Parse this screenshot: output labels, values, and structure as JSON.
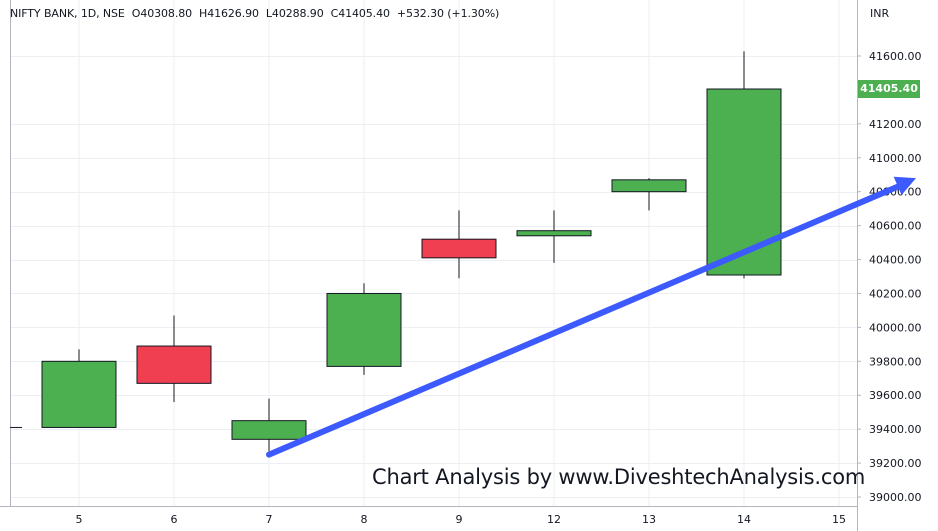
{
  "header": {
    "symbol": "NIFTY BANK, 1D, NSE",
    "open": "O40308.80",
    "high": "H41626.90",
    "low": "L40288.90",
    "close": "C41405.40",
    "change": "+532.30 (+1.30%)",
    "currency": "INR"
  },
  "last_price_label": "41405.40",
  "watermark": "Chart Analysis by www.DiveshtechAnalysis.com",
  "colors": {
    "up": "#4caf50",
    "down": "#ef3f50",
    "trend_arrow": "#3d5afe",
    "grid": "#eceff3",
    "axis_border": "#b2b5be"
  },
  "chart_data": {
    "type": "candlestick",
    "x_labels": [
      "5",
      "6",
      "7",
      "8",
      "9",
      "12",
      "13",
      "14",
      "15"
    ],
    "y_ticks": [
      41600,
      41200,
      41000,
      40800,
      40600,
      40400,
      40200,
      40000,
      39800,
      39600,
      39400,
      39200,
      39000
    ],
    "ylim": [
      38980,
      41900
    ],
    "grid": true,
    "candles": [
      {
        "date": "5",
        "open": 39410,
        "high": 39870,
        "low": 39410,
        "close": 39800
      },
      {
        "date": "6",
        "open": 39890,
        "high": 40070,
        "low": 39560,
        "close": 39670
      },
      {
        "date": "7",
        "open": 39340,
        "high": 39580,
        "low": 39270,
        "close": 39450
      },
      {
        "date": "8",
        "open": 39770,
        "high": 40260,
        "low": 39720,
        "close": 40200
      },
      {
        "date": "9",
        "open": 40520,
        "high": 40690,
        "low": 40290,
        "close": 40410
      },
      {
        "date": "12",
        "open": 40540,
        "high": 40690,
        "low": 40380,
        "close": 40570
      },
      {
        "date": "13",
        "open": 40800,
        "high": 40880,
        "low": 40690,
        "close": 40870
      },
      {
        "date": "14",
        "open": 40308.8,
        "high": 41626.9,
        "low": 40288.9,
        "close": 41405.4
      }
    ],
    "prior_close": 39410,
    "trend_line": {
      "from": {
        "date": "7",
        "price": 39250
      },
      "to": {
        "date": "15+",
        "price": 40880
      }
    }
  }
}
